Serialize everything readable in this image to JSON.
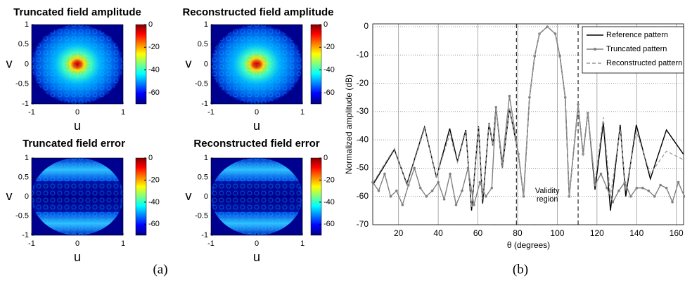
{
  "chart_data": [
    {
      "type": "heatmap",
      "title": "Truncated field amplitude",
      "xlabel": "u",
      "ylabel": "v",
      "xlim": [
        -1,
        1
      ],
      "ylim": [
        -1,
        1
      ],
      "xticks": [
        -1,
        0,
        1
      ],
      "yticks": [
        -1,
        -0.5,
        0,
        0.5,
        1
      ],
      "clim": [
        -70,
        0
      ],
      "colorbar_ticks": [
        0,
        -20,
        -40,
        -60
      ]
    },
    {
      "type": "heatmap",
      "title": "Reconstructed field amplitude",
      "xlabel": "u",
      "ylabel": "v",
      "xlim": [
        -1,
        1
      ],
      "ylim": [
        -1,
        1
      ],
      "xticks": [
        -1,
        0,
        1
      ],
      "yticks": [
        -1,
        -0.5,
        0,
        0.5,
        1
      ],
      "clim": [
        -70,
        0
      ],
      "colorbar_ticks": [
        0,
        -20,
        -40,
        -60
      ]
    },
    {
      "type": "heatmap",
      "title": "Truncated field error",
      "xlabel": "u",
      "ylabel": "v",
      "xlim": [
        -1,
        1
      ],
      "ylim": [
        -1,
        1
      ],
      "xticks": [
        -1,
        0,
        1
      ],
      "yticks": [
        -1,
        -0.5,
        0,
        0.5,
        1
      ],
      "clim": [
        -70,
        0
      ],
      "colorbar_ticks": [
        0,
        -20,
        -40,
        -60
      ]
    },
    {
      "type": "heatmap",
      "title": "Reconstructed field error",
      "xlabel": "u",
      "ylabel": "v",
      "xlim": [
        -1,
        1
      ],
      "ylim": [
        -1,
        1
      ],
      "xticks": [
        -1,
        0,
        1
      ],
      "yticks": [
        -1,
        -0.5,
        0,
        0.5,
        1
      ],
      "clim": [
        -70,
        0
      ],
      "colorbar_ticks": [
        0,
        -20,
        -40,
        -60
      ]
    },
    {
      "type": "line",
      "xlabel": "θ (degrees)",
      "ylabel": "Normalized amplitude (dB)",
      "xlim": [
        7,
        164
      ],
      "ylim": [
        -70,
        1
      ],
      "xticks": [
        20,
        40,
        60,
        80,
        100,
        120,
        140,
        160
      ],
      "yticks": [
        0,
        -10,
        -20,
        -30,
        -40,
        -50,
        -60,
        -70
      ],
      "grid": true,
      "legend": "upper right",
      "validity_region": [
        79.4,
        110.5
      ],
      "annotation": [
        "Validity",
        "region"
      ],
      "series": [
        {
          "name": "Reference pattern",
          "color": "#000000",
          "style": "solid",
          "marker": false,
          "x": [
            7.3,
            17.9,
            24.2,
            33.1,
            39.1,
            45.8,
            49.7,
            53.9,
            56.8,
            60.3,
            62.4,
            65.6,
            67.5,
            69.1,
            72.3,
            75.9,
            80.4,
            83,
            86,
            88.6,
            91,
            95,
            99,
            101.3,
            104,
            106,
            110.5,
            113,
            115.4,
            119,
            123.2,
            126.8,
            131.7,
            134.5,
            139.8,
            146.9,
            155,
            163.5
          ],
          "values": [
            -55.6,
            -43.4,
            -55.6,
            -35.5,
            -53.3,
            -36,
            -47.6,
            -36.5,
            -65,
            -35.2,
            -62.5,
            -34,
            -42,
            -28.3,
            -50,
            -29,
            -45,
            -60,
            -25,
            -10.4,
            -2.5,
            0,
            -2.5,
            -10.4,
            -25,
            -60,
            -27.8,
            -45,
            -30.3,
            -57.6,
            -34,
            -65,
            -34.7,
            -60,
            -34.7,
            -53.8,
            -36.5,
            -45
          ]
        },
        {
          "name": "Truncated pattern",
          "color": "#808080",
          "style": "solid",
          "marker": true,
          "x": [
            7,
            10,
            13,
            16,
            19,
            22,
            25,
            28,
            31,
            34,
            37,
            40,
            43,
            46,
            49,
            52,
            55,
            58,
            61,
            64,
            67,
            69.1,
            72.3,
            75.9,
            80.4,
            83,
            86,
            88.6,
            91,
            95,
            99,
            101.3,
            104,
            106,
            110.5,
            113,
            115.4,
            119,
            122,
            125,
            128,
            131,
            134,
            137,
            140,
            143,
            146,
            149,
            152,
            155,
            158,
            161,
            164
          ],
          "values": [
            -55,
            -58,
            -52,
            -60,
            -58,
            -63,
            -56,
            -50,
            -57,
            -60,
            -58,
            -55,
            -61,
            -52,
            -63,
            -58,
            -50,
            -63,
            -55,
            -60,
            -57,
            -28.5,
            -48,
            -24.5,
            -45,
            -60,
            -25,
            -10.4,
            -2.5,
            0,
            -2.5,
            -10.4,
            -25,
            -60,
            -27.5,
            -45,
            -30.5,
            -56,
            -52,
            -57,
            -62,
            -58,
            -55,
            -60,
            -57,
            -57,
            -58,
            -60,
            -56,
            -57,
            -62,
            -55,
            -60
          ]
        },
        {
          "name": "Reconstructed pattern",
          "color": "#999999",
          "style": "dashed",
          "marker": false,
          "x": [
            7.3,
            17.9,
            24.2,
            33.1,
            39.1,
            45.8,
            49.7,
            53.9,
            56.8,
            60.3,
            62.4,
            65.6,
            67.5,
            69.1,
            72.3,
            75.9,
            80.4,
            83,
            86,
            88.6,
            91,
            95,
            99,
            101.3,
            104,
            106,
            110.5,
            113,
            115.4,
            119,
            123.2,
            126.8,
            131.7,
            134.5,
            139.8,
            146.9,
            155,
            163.5
          ],
          "values": [
            -55,
            -43,
            -56,
            -36,
            -53,
            -38,
            -48,
            -37,
            -64,
            -35.5,
            -61,
            -34,
            -42,
            -28.5,
            -50,
            -29,
            -45,
            -60,
            -25,
            -10.4,
            -2.5,
            0,
            -2.5,
            -10.4,
            -25,
            -60,
            -27.5,
            -46,
            -30,
            -55,
            -32,
            -60,
            -36,
            -58,
            -37,
            -52,
            -44,
            -47
          ]
        }
      ],
      "caption": "(b)"
    },
    {
      "type": "caption",
      "caption": "(a)"
    }
  ]
}
